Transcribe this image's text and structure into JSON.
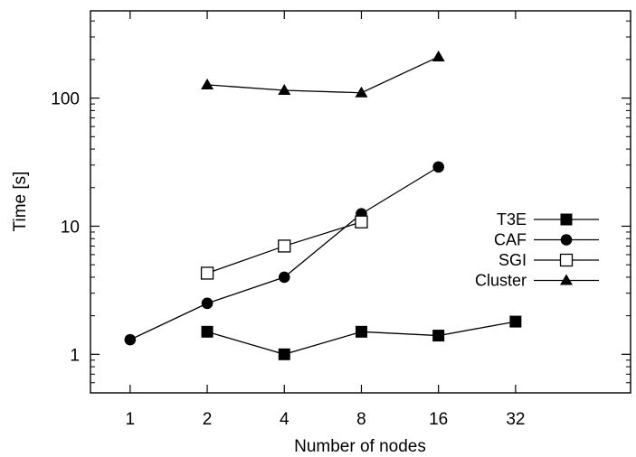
{
  "chart_data": {
    "type": "line",
    "xlabel": "Number of nodes",
    "ylabel": "Time [s]",
    "x_scale": "log2",
    "y_scale": "log10",
    "xlim": [
      0.7,
      90
    ],
    "ylim": [
      0.5,
      480
    ],
    "x_ticks": [
      {
        "value": 1,
        "label": "1"
      },
      {
        "value": 2,
        "label": "2"
      },
      {
        "value": 4,
        "label": "4"
      },
      {
        "value": 8,
        "label": "8"
      },
      {
        "value": 16,
        "label": "16"
      },
      {
        "value": 32,
        "label": "32"
      }
    ],
    "y_ticks": [
      {
        "value": 1,
        "label": "1"
      },
      {
        "value": 10,
        "label": "10"
      },
      {
        "value": 100,
        "label": "100"
      }
    ],
    "legend_position": "right",
    "series": [
      {
        "name": "T3E",
        "marker": "square-filled",
        "points": [
          {
            "x": 2,
            "y": 1.5
          },
          {
            "x": 4,
            "y": 1.0
          },
          {
            "x": 8,
            "y": 1.5
          },
          {
            "x": 16,
            "y": 1.4
          },
          {
            "x": 32,
            "y": 1.8
          }
        ]
      },
      {
        "name": "CAF",
        "marker": "circle-filled",
        "points": [
          {
            "x": 1,
            "y": 1.3
          },
          {
            "x": 2,
            "y": 2.5
          },
          {
            "x": 4,
            "y": 4.0
          },
          {
            "x": 8,
            "y": 12.5
          },
          {
            "x": 16,
            "y": 29
          }
        ]
      },
      {
        "name": "SGI",
        "marker": "square-open",
        "points": [
          {
            "x": 2,
            "y": 4.3
          },
          {
            "x": 4,
            "y": 7.0
          },
          {
            "x": 8,
            "y": 10.8
          }
        ]
      },
      {
        "name": "Cluster",
        "marker": "triangle-filled",
        "points": [
          {
            "x": 2,
            "y": 127
          },
          {
            "x": 4,
            "y": 115
          },
          {
            "x": 8,
            "y": 110
          },
          {
            "x": 16,
            "y": 210
          }
        ]
      }
    ]
  }
}
